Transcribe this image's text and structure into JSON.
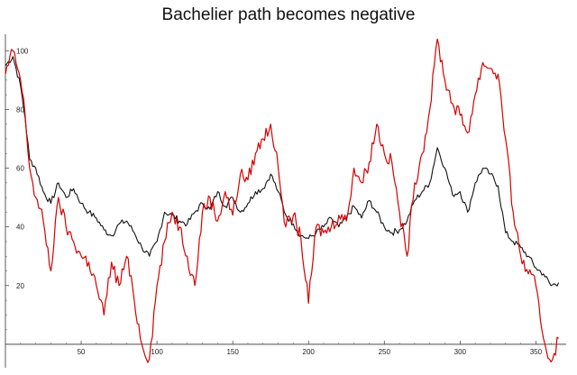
{
  "chart_data": {
    "type": "line",
    "title": "Bachelier path becomes negative",
    "xlabel": "",
    "ylabel": "",
    "xlim": [
      0,
      370
    ],
    "ylim": [
      -8,
      105
    ],
    "x_ticks": [
      50,
      100,
      150,
      200,
      250,
      300,
      350
    ],
    "y_ticks": [
      20,
      40,
      60,
      80,
      100
    ],
    "grid": false,
    "series": [
      {
        "name": "black path",
        "color": "#111111",
        "x": [
          0,
          5,
          10,
          13,
          16,
          20,
          25,
          30,
          35,
          40,
          45,
          50,
          55,
          60,
          65,
          70,
          75,
          80,
          85,
          90,
          95,
          100,
          105,
          110,
          115,
          120,
          125,
          130,
          135,
          140,
          145,
          150,
          155,
          160,
          165,
          170,
          175,
          180,
          185,
          190,
          195,
          200,
          205,
          210,
          215,
          220,
          225,
          230,
          235,
          240,
          245,
          250,
          255,
          260,
          265,
          270,
          275,
          280,
          285,
          290,
          295,
          300,
          305,
          310,
          315,
          320,
          325,
          330,
          335,
          340,
          345,
          350,
          355,
          360,
          365
        ],
        "values": [
          95,
          98,
          88,
          77,
          63,
          60,
          52,
          48,
          55,
          50,
          53,
          48,
          45,
          43,
          39,
          37,
          41,
          42,
          38,
          33,
          30,
          35,
          45,
          44,
          42,
          41,
          45,
          48,
          46,
          52,
          47,
          50,
          45,
          48,
          52,
          53,
          58,
          52,
          44,
          41,
          37,
          36,
          38,
          40,
          43,
          40,
          43,
          47,
          43,
          49,
          45,
          40,
          38,
          39,
          42,
          49,
          52,
          55,
          67,
          60,
          51,
          52,
          45,
          55,
          60,
          58,
          54,
          38,
          35,
          33,
          30,
          26,
          24,
          20,
          21
        ]
      },
      {
        "name": "red path",
        "color": "#d40000",
        "x": [
          0,
          5,
          10,
          13,
          16,
          20,
          25,
          30,
          35,
          40,
          45,
          50,
          55,
          60,
          65,
          70,
          75,
          80,
          85,
          90,
          95,
          100,
          105,
          110,
          115,
          120,
          125,
          130,
          135,
          140,
          145,
          150,
          155,
          160,
          165,
          170,
          175,
          180,
          185,
          190,
          195,
          200,
          205,
          210,
          215,
          220,
          225,
          230,
          235,
          240,
          245,
          250,
          255,
          260,
          265,
          270,
          275,
          280,
          285,
          290,
          295,
          300,
          305,
          310,
          315,
          320,
          325,
          330,
          335,
          340,
          345,
          350,
          355,
          360,
          365
        ],
        "values": [
          92,
          100,
          90,
          78,
          60,
          50,
          42,
          25,
          50,
          40,
          35,
          30,
          28,
          20,
          10,
          28,
          20,
          30,
          15,
          0,
          -5,
          20,
          35,
          45,
          40,
          30,
          20,
          45,
          50,
          42,
          52,
          44,
          58,
          56,
          65,
          70,
          75,
          60,
          40,
          44,
          36,
          14,
          40,
          38,
          40,
          44,
          42,
          60,
          55,
          62,
          75,
          65,
          62,
          45,
          30,
          55,
          65,
          80,
          104,
          90,
          82,
          78,
          72,
          85,
          96,
          94,
          92,
          70,
          45,
          30,
          24,
          20,
          2,
          -6,
          2
        ]
      }
    ]
  }
}
